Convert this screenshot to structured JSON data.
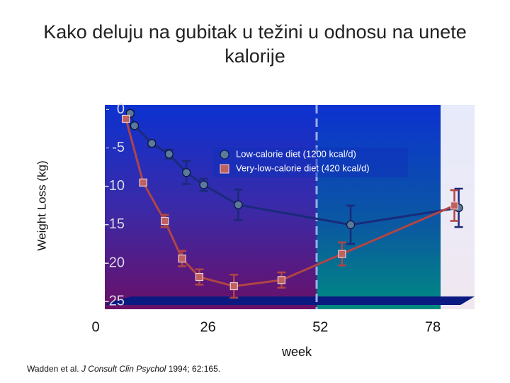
{
  "chart_data": {
    "type": "line",
    "title": "Kako deluju na gubitak u težini u odnosu na unete kalorije",
    "y_label": "Weight Loss (kg)",
    "x_label": "week",
    "xlim": [
      0,
      88
    ],
    "xticks": [
      0,
      26,
      52,
      78
    ],
    "ylim": [
      -26,
      0.6
    ],
    "yticks": [
      0,
      -5,
      -10,
      -15,
      -20,
      -25
    ],
    "series": [
      {
        "name": "Low-calorie diet (1200 kcal/d)",
        "color": "#1a2a7a",
        "marker_color": "#5a7a9a",
        "marker": "circle",
        "x": [
          8,
          9,
          13,
          17,
          21,
          25,
          33,
          59,
          84
        ],
        "values": [
          -0.5,
          -2.1,
          -4.4,
          -5.8,
          -8.2,
          -9.8,
          -12.4,
          -15.0,
          -12.8
        ],
        "errors": [
          0.3,
          0.3,
          0.4,
          0.6,
          1.5,
          0.8,
          2.0,
          2.5,
          2.5
        ]
      },
      {
        "name": "Very-low-calorie diet (420 kcal/d)",
        "color": "#b04545",
        "marker_color": "#c06060",
        "marker": "square",
        "x": [
          7,
          11,
          16,
          20,
          24,
          32,
          43,
          57,
          83
        ],
        "values": [
          -1.2,
          -9.5,
          -14.5,
          -19.4,
          -21.8,
          -23.0,
          -22.2,
          -18.8,
          -12.5
        ],
        "errors": [
          0.3,
          0.3,
          0.8,
          1.0,
          1.0,
          1.5,
          1.0,
          1.5,
          2.0
        ]
      }
    ]
  },
  "source": {
    "authors": "Wadden et al.",
    "journal": "J Consult Clin Psychol",
    "citation": "1994; 62:165."
  }
}
